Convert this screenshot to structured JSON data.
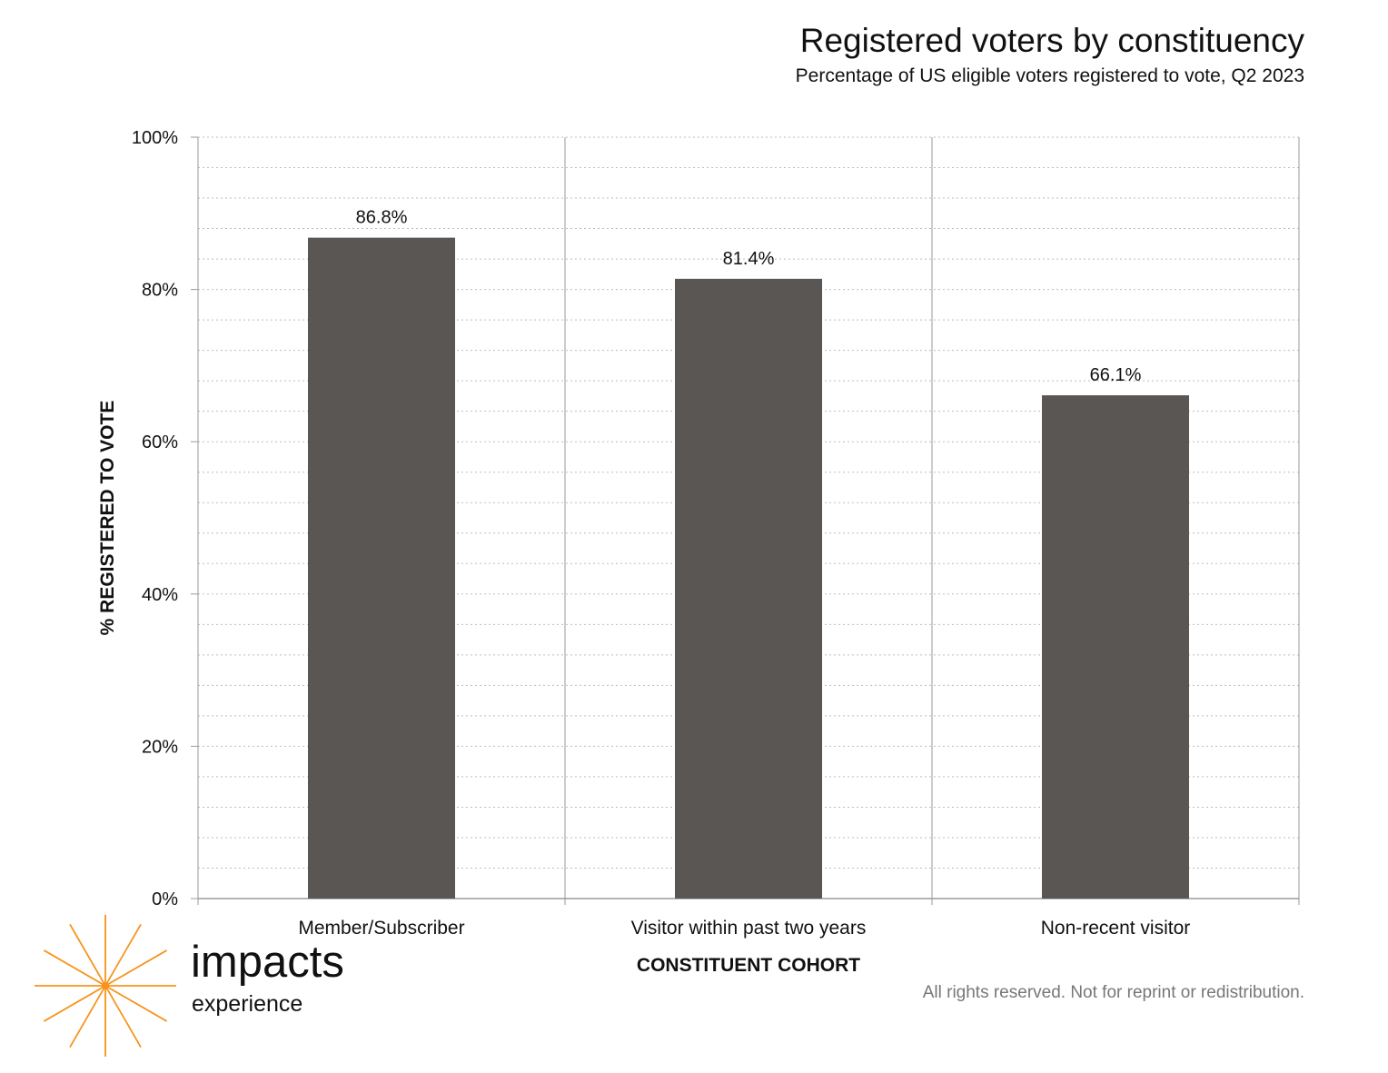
{
  "header": {
    "title": "Registered voters by constituency",
    "subtitle": "Percentage of US eligible voters registered to vote, Q2 2023"
  },
  "chart_data": {
    "type": "bar",
    "categories": [
      "Member/Subscriber",
      "Visitor within past two years",
      "Non-recent visitor"
    ],
    "values": [
      86.8,
      81.4,
      66.1
    ],
    "value_labels": [
      "86.8%",
      "81.4%",
      "66.1%"
    ],
    "xlabel": "CONSTITUENT COHORT",
    "ylabel": "% REGISTERED TO VOTE",
    "ylim": [
      0,
      100
    ],
    "yticks": [
      0,
      20,
      40,
      60,
      80,
      100
    ],
    "ytick_labels": [
      "0%",
      "20%",
      "40%",
      "60%",
      "80%",
      "100%"
    ],
    "minor_grid_step": 4,
    "grid": true,
    "bar_color": "#5a5654",
    "grid_color": "#bdbdbd"
  },
  "branding": {
    "logo_word": "impacts",
    "logo_sub": "experience",
    "logo_color": "#f7941d"
  },
  "footer": {
    "rights": "All rights reserved. Not for reprint or redistribution."
  }
}
